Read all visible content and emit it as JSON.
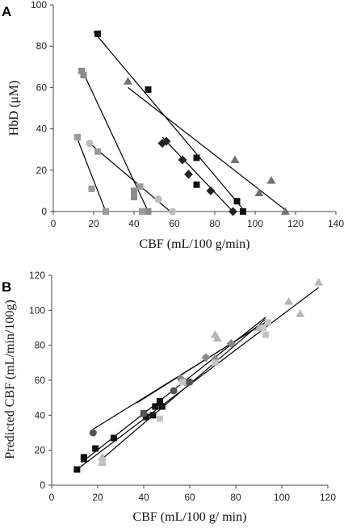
{
  "chart_data": [
    {
      "panel_label": "A",
      "type": "scatter",
      "xlabel": "CBF (mL/100 g/min)",
      "ylabel": "HbD (μM)",
      "xlim": [
        0,
        140
      ],
      "ylim": [
        0,
        100
      ],
      "xticks": [
        "0",
        "20",
        "40",
        "60",
        "80",
        "100",
        "120",
        "140"
      ],
      "yticks": [
        "0",
        "20",
        "40",
        "60",
        "80",
        "100"
      ],
      "grid": false,
      "legend": "none",
      "series": [
        {
          "marker": "square",
          "color": "#111111",
          "points": [
            [
              22,
              86
            ],
            [
              47,
              59
            ],
            [
              71,
              26
            ],
            [
              71,
              13
            ],
            [
              91,
              5
            ],
            [
              94,
              0
            ]
          ],
          "fit": [
            [
              20,
              87
            ],
            [
              95,
              0
            ]
          ]
        },
        {
          "marker": "diamond",
          "color": "#222222",
          "points": [
            [
              54,
              33
            ],
            [
              56,
              34
            ],
            [
              64,
              25
            ],
            [
              67,
              18
            ],
            [
              78,
              10
            ],
            [
              89,
              0
            ]
          ],
          "fit": [
            [
              54,
              36
            ],
            [
              89,
              0
            ]
          ]
        },
        {
          "marker": "triangle",
          "color": "#707070",
          "points": [
            [
              37,
              63
            ],
            [
              90,
              25
            ],
            [
              102,
              9
            ],
            [
              108,
              15
            ],
            [
              115,
              0
            ]
          ],
          "fit": [
            [
              37,
              60
            ],
            [
              116,
              0
            ]
          ]
        },
        {
          "marker": "square",
          "color": "#8c8c8c",
          "points": [
            [
              14,
              68
            ],
            [
              15,
              66
            ],
            [
              40,
              10
            ],
            [
              40,
              7
            ],
            [
              46,
              0
            ],
            [
              47,
              0
            ]
          ],
          "fit": [
            [
              14,
              69
            ],
            [
              47,
              0
            ]
          ]
        },
        {
          "marker": "square",
          "color": "#9a9a9a",
          "points": [
            [
              12,
              36
            ],
            [
              19,
              11
            ],
            [
              22,
              29
            ],
            [
              26,
              0
            ],
            [
              43,
              12
            ],
            [
              44,
              0
            ]
          ],
          "fit": [
            [
              12,
              35
            ],
            [
              26,
              0
            ]
          ]
        },
        {
          "marker": "circle",
          "color": "#bbbbbb",
          "points": [
            [
              18,
              33
            ],
            [
              52,
              6
            ],
            [
              59,
              0
            ]
          ],
          "fit": [
            [
              18,
              33
            ],
            [
              58,
              0
            ]
          ]
        }
      ]
    },
    {
      "panel_label": "B",
      "type": "scatter",
      "xlabel": "CBF (mL/100 g/ min)",
      "ylabel": "Predicted  CBF (mL/min/100g)",
      "xlim": [
        0,
        120
      ],
      "ylim": [
        0,
        120
      ],
      "xticks": [
        "0",
        "20",
        "40",
        "60",
        "80",
        "100",
        "120"
      ],
      "yticks": [
        "0",
        "20",
        "40",
        "60",
        "80",
        "100",
        "120"
      ],
      "grid": false,
      "legend": "none",
      "series": [
        {
          "marker": "square",
          "color": "#111111",
          "points": [
            [
              11,
              9
            ],
            [
              14,
              16
            ],
            [
              14,
              15
            ],
            [
              19,
              21
            ],
            [
              27,
              27
            ],
            [
              40,
              41
            ],
            [
              41,
              39
            ],
            [
              44,
              40
            ],
            [
              45,
              45
            ],
            [
              47,
              47
            ],
            [
              48,
              45
            ],
            [
              47,
              48
            ]
          ]
        },
        {
          "marker": "circle",
          "color": "#555555",
          "points": [
            [
              18,
              30
            ],
            [
              40,
              41
            ],
            [
              53,
              54
            ],
            [
              58,
              59
            ],
            [
              60,
              59
            ]
          ]
        },
        {
          "marker": "diamond",
          "color": "#888888",
          "points": [
            [
              56,
              61
            ],
            [
              67,
              73
            ],
            [
              71,
              72
            ],
            [
              78,
              81
            ],
            [
              91,
              90
            ]
          ]
        },
        {
          "marker": "triangle",
          "color": "#b5b5b5",
          "points": [
            [
              22,
              13
            ],
            [
              22,
              16
            ],
            [
              71,
              86
            ],
            [
              72,
              84
            ],
            [
              90,
              90
            ],
            [
              103,
              105
            ],
            [
              108,
              98
            ],
            [
              116,
              116
            ]
          ]
        },
        {
          "marker": "square",
          "color": "#c4c4c4",
          "points": [
            [
              22,
              14
            ],
            [
              47,
              38
            ],
            [
              57,
              59
            ],
            [
              71,
              70
            ],
            [
              92,
              90
            ],
            [
              93,
              86
            ],
            [
              94,
              93
            ]
          ]
        }
      ],
      "fits": [
        [
          [
            12,
            10
          ],
          [
            116,
            113
          ]
        ],
        [
          [
            13,
            13
          ],
          [
            93,
            96
          ]
        ],
        [
          [
            18,
            32
          ],
          [
            94,
            94
          ]
        ],
        [
          [
            37,
            47
          ],
          [
            90,
            91
          ]
        ],
        [
          [
            21,
            14
          ],
          [
            93,
            95
          ]
        ]
      ]
    }
  ]
}
